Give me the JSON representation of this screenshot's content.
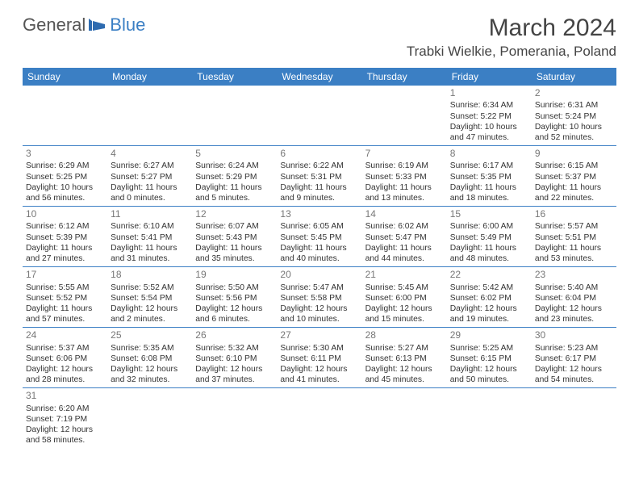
{
  "logo": {
    "part1": "General",
    "part2": "Blue"
  },
  "title": "March 2024",
  "subtitle": "Trabki Wielkie, Pomerania, Poland",
  "dayNames": [
    "Sunday",
    "Monday",
    "Tuesday",
    "Wednesday",
    "Thursday",
    "Friday",
    "Saturday"
  ],
  "colors": {
    "headerBlue": "#3b7fc4",
    "logoGray": "#555",
    "textGray": "#333",
    "dateNumGray": "#777",
    "background": "#ffffff"
  },
  "weeks": [
    [
      null,
      null,
      null,
      null,
      null,
      {
        "d": "1",
        "sr": "Sunrise: 6:34 AM",
        "ss": "Sunset: 5:22 PM",
        "dl1": "Daylight: 10 hours",
        "dl2": "and 47 minutes."
      },
      {
        "d": "2",
        "sr": "Sunrise: 6:31 AM",
        "ss": "Sunset: 5:24 PM",
        "dl1": "Daylight: 10 hours",
        "dl2": "and 52 minutes."
      }
    ],
    [
      {
        "d": "3",
        "sr": "Sunrise: 6:29 AM",
        "ss": "Sunset: 5:25 PM",
        "dl1": "Daylight: 10 hours",
        "dl2": "and 56 minutes."
      },
      {
        "d": "4",
        "sr": "Sunrise: 6:27 AM",
        "ss": "Sunset: 5:27 PM",
        "dl1": "Daylight: 11 hours",
        "dl2": "and 0 minutes."
      },
      {
        "d": "5",
        "sr": "Sunrise: 6:24 AM",
        "ss": "Sunset: 5:29 PM",
        "dl1": "Daylight: 11 hours",
        "dl2": "and 5 minutes."
      },
      {
        "d": "6",
        "sr": "Sunrise: 6:22 AM",
        "ss": "Sunset: 5:31 PM",
        "dl1": "Daylight: 11 hours",
        "dl2": "and 9 minutes."
      },
      {
        "d": "7",
        "sr": "Sunrise: 6:19 AM",
        "ss": "Sunset: 5:33 PM",
        "dl1": "Daylight: 11 hours",
        "dl2": "and 13 minutes."
      },
      {
        "d": "8",
        "sr": "Sunrise: 6:17 AM",
        "ss": "Sunset: 5:35 PM",
        "dl1": "Daylight: 11 hours",
        "dl2": "and 18 minutes."
      },
      {
        "d": "9",
        "sr": "Sunrise: 6:15 AM",
        "ss": "Sunset: 5:37 PM",
        "dl1": "Daylight: 11 hours",
        "dl2": "and 22 minutes."
      }
    ],
    [
      {
        "d": "10",
        "sr": "Sunrise: 6:12 AM",
        "ss": "Sunset: 5:39 PM",
        "dl1": "Daylight: 11 hours",
        "dl2": "and 27 minutes."
      },
      {
        "d": "11",
        "sr": "Sunrise: 6:10 AM",
        "ss": "Sunset: 5:41 PM",
        "dl1": "Daylight: 11 hours",
        "dl2": "and 31 minutes."
      },
      {
        "d": "12",
        "sr": "Sunrise: 6:07 AM",
        "ss": "Sunset: 5:43 PM",
        "dl1": "Daylight: 11 hours",
        "dl2": "and 35 minutes."
      },
      {
        "d": "13",
        "sr": "Sunrise: 6:05 AM",
        "ss": "Sunset: 5:45 PM",
        "dl1": "Daylight: 11 hours",
        "dl2": "and 40 minutes."
      },
      {
        "d": "14",
        "sr": "Sunrise: 6:02 AM",
        "ss": "Sunset: 5:47 PM",
        "dl1": "Daylight: 11 hours",
        "dl2": "and 44 minutes."
      },
      {
        "d": "15",
        "sr": "Sunrise: 6:00 AM",
        "ss": "Sunset: 5:49 PM",
        "dl1": "Daylight: 11 hours",
        "dl2": "and 48 minutes."
      },
      {
        "d": "16",
        "sr": "Sunrise: 5:57 AM",
        "ss": "Sunset: 5:51 PM",
        "dl1": "Daylight: 11 hours",
        "dl2": "and 53 minutes."
      }
    ],
    [
      {
        "d": "17",
        "sr": "Sunrise: 5:55 AM",
        "ss": "Sunset: 5:52 PM",
        "dl1": "Daylight: 11 hours",
        "dl2": "and 57 minutes."
      },
      {
        "d": "18",
        "sr": "Sunrise: 5:52 AM",
        "ss": "Sunset: 5:54 PM",
        "dl1": "Daylight: 12 hours",
        "dl2": "and 2 minutes."
      },
      {
        "d": "19",
        "sr": "Sunrise: 5:50 AM",
        "ss": "Sunset: 5:56 PM",
        "dl1": "Daylight: 12 hours",
        "dl2": "and 6 minutes."
      },
      {
        "d": "20",
        "sr": "Sunrise: 5:47 AM",
        "ss": "Sunset: 5:58 PM",
        "dl1": "Daylight: 12 hours",
        "dl2": "and 10 minutes."
      },
      {
        "d": "21",
        "sr": "Sunrise: 5:45 AM",
        "ss": "Sunset: 6:00 PM",
        "dl1": "Daylight: 12 hours",
        "dl2": "and 15 minutes."
      },
      {
        "d": "22",
        "sr": "Sunrise: 5:42 AM",
        "ss": "Sunset: 6:02 PM",
        "dl1": "Daylight: 12 hours",
        "dl2": "and 19 minutes."
      },
      {
        "d": "23",
        "sr": "Sunrise: 5:40 AM",
        "ss": "Sunset: 6:04 PM",
        "dl1": "Daylight: 12 hours",
        "dl2": "and 23 minutes."
      }
    ],
    [
      {
        "d": "24",
        "sr": "Sunrise: 5:37 AM",
        "ss": "Sunset: 6:06 PM",
        "dl1": "Daylight: 12 hours",
        "dl2": "and 28 minutes."
      },
      {
        "d": "25",
        "sr": "Sunrise: 5:35 AM",
        "ss": "Sunset: 6:08 PM",
        "dl1": "Daylight: 12 hours",
        "dl2": "and 32 minutes."
      },
      {
        "d": "26",
        "sr": "Sunrise: 5:32 AM",
        "ss": "Sunset: 6:10 PM",
        "dl1": "Daylight: 12 hours",
        "dl2": "and 37 minutes."
      },
      {
        "d": "27",
        "sr": "Sunrise: 5:30 AM",
        "ss": "Sunset: 6:11 PM",
        "dl1": "Daylight: 12 hours",
        "dl2": "and 41 minutes."
      },
      {
        "d": "28",
        "sr": "Sunrise: 5:27 AM",
        "ss": "Sunset: 6:13 PM",
        "dl1": "Daylight: 12 hours",
        "dl2": "and 45 minutes."
      },
      {
        "d": "29",
        "sr": "Sunrise: 5:25 AM",
        "ss": "Sunset: 6:15 PM",
        "dl1": "Daylight: 12 hours",
        "dl2": "and 50 minutes."
      },
      {
        "d": "30",
        "sr": "Sunrise: 5:23 AM",
        "ss": "Sunset: 6:17 PM",
        "dl1": "Daylight: 12 hours",
        "dl2": "and 54 minutes."
      }
    ],
    [
      {
        "d": "31",
        "sr": "Sunrise: 6:20 AM",
        "ss": "Sunset: 7:19 PM",
        "dl1": "Daylight: 12 hours",
        "dl2": "and 58 minutes."
      },
      null,
      null,
      null,
      null,
      null,
      null
    ]
  ]
}
